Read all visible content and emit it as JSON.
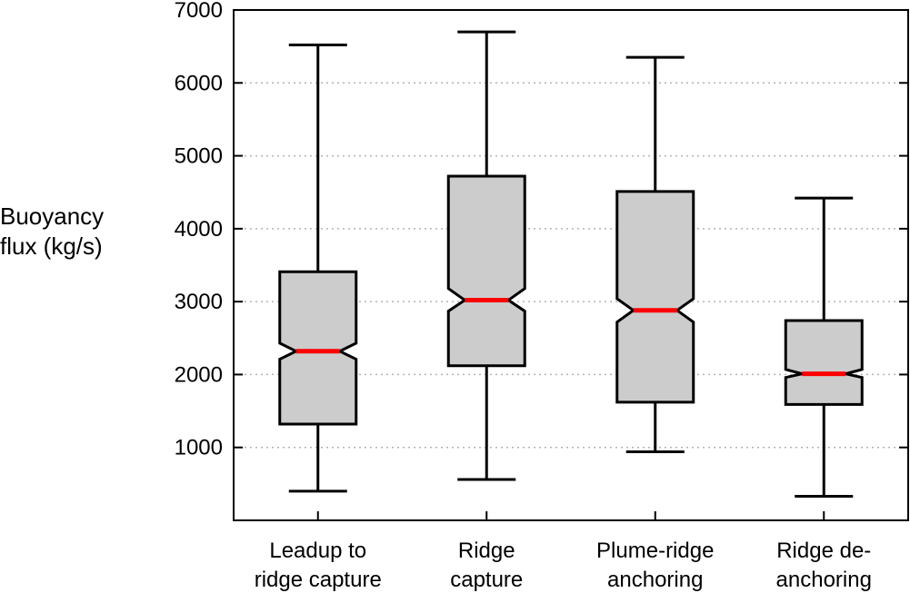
{
  "chart_data": {
    "type": "boxplot",
    "notched": true,
    "ylabel_lines": [
      "Buoyancy",
      "flux (kg/s)"
    ],
    "xlabel": "",
    "ylim": [
      0,
      7000
    ],
    "yticks": [
      "1000",
      "2000",
      "3000",
      "4000",
      "5000",
      "6000",
      "7000"
    ],
    "grid": "horizontal dotted",
    "colors": {
      "box_fill": "#cccccc",
      "median": "#ff0000",
      "line": "#000000",
      "grid": "#b3b3b3"
    },
    "boxes": [
      {
        "label_lines": [
          "Leadup to",
          "ridge capture"
        ],
        "whisker_low": 400,
        "q1": 1320,
        "median": 2320,
        "q3": 3410,
        "whisker_high": 6520,
        "notch_low": 2210,
        "notch_high": 2430
      },
      {
        "label_lines": [
          "Ridge",
          "capture"
        ],
        "whisker_low": 560,
        "q1": 2120,
        "median": 3020,
        "q3": 4720,
        "whisker_high": 6700,
        "notch_low": 2870,
        "notch_high": 3180
      },
      {
        "label_lines": [
          "Plume-ridge",
          "anchoring"
        ],
        "whisker_low": 940,
        "q1": 1620,
        "median": 2880,
        "q3": 4510,
        "whisker_high": 6350,
        "notch_low": 2720,
        "notch_high": 3040
      },
      {
        "label_lines": [
          "Ridge de-",
          "anchoring"
        ],
        "whisker_low": 330,
        "q1": 1590,
        "median": 2010,
        "q3": 2740,
        "whisker_high": 4420,
        "notch_low": 1960,
        "notch_high": 2070
      }
    ]
  }
}
